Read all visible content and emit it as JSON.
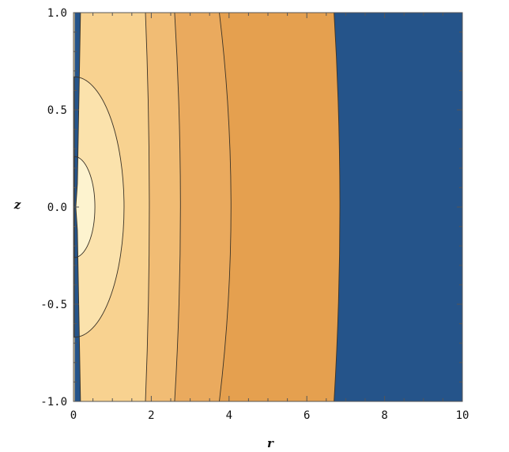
{
  "chart_data": {
    "type": "contour",
    "title": "",
    "xlabel": "r",
    "ylabel": "z",
    "xlim": [
      0,
      10
    ],
    "ylim": [
      -1.0,
      1.0
    ],
    "x_ticks": [
      {
        "value": 0,
        "label": "0"
      },
      {
        "value": 2,
        "label": "2"
      },
      {
        "value": 4,
        "label": "4"
      },
      {
        "value": 6,
        "label": "6"
      },
      {
        "value": 8,
        "label": "8"
      },
      {
        "value": 10,
        "label": "10"
      }
    ],
    "y_ticks": [
      {
        "value": 1.0,
        "label": "1.0"
      },
      {
        "value": 0.5,
        "label": "0.5"
      },
      {
        "value": 0.0,
        "label": "0.0"
      },
      {
        "value": -0.5,
        "label": "-0.5"
      },
      {
        "value": -1.0,
        "label": "-1.0"
      }
    ],
    "contours": [
      {
        "name": "contour-1",
        "r_mid": 0.55,
        "z_half": 0.26
      },
      {
        "name": "contour-2",
        "r_mid": 1.3,
        "z_half": 0.67
      },
      {
        "name": "contour-3",
        "r_top": 1.85,
        "r_mid": 1.95,
        "r_bottom": 1.85
      },
      {
        "name": "contour-4",
        "r_top": 2.6,
        "r_mid": 2.75,
        "r_bottom": 2.6
      },
      {
        "name": "contour-5",
        "r_top": 3.75,
        "r_mid": 4.05,
        "r_bottom": 3.75
      },
      {
        "name": "contour-6",
        "r_top": 6.7,
        "r_mid": 6.85,
        "r_bottom": 6.7
      }
    ],
    "colors": {
      "level_1": "#fdf3cf",
      "level_2": "#fbe2ac",
      "level_3": "#f8d290",
      "level_4": "#f1bc74",
      "level_5": "#eaaa5e",
      "level_6": "#e5a04f",
      "outside": "#25548a",
      "edge_strip": "#25548a"
    },
    "grid": false
  }
}
